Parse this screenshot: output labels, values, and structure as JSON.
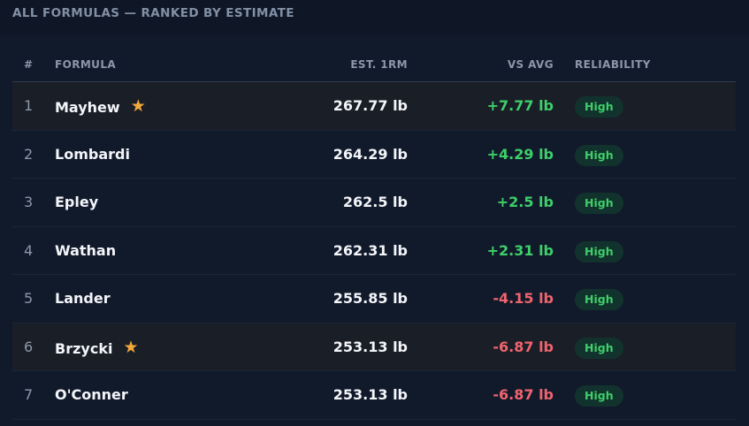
{
  "section_title": "ALL FORMULAS — RANKED BY ESTIMATE",
  "columns": {
    "rank": "#",
    "formula": "FORMULA",
    "est": "EST. 1RM",
    "vs": "VS AVG",
    "reliability": "RELIABILITY"
  },
  "colors": {
    "positive": "#3ecf6a",
    "negative": "#f0646d",
    "star": "#f2a93b",
    "badge_bg": "#12332d"
  },
  "rows": [
    {
      "rank": "1",
      "name": "Mayhew",
      "starred": true,
      "star_icon": "star-icon",
      "est": "267.77 lb",
      "vs": "+7.77 lb",
      "vs_sign": "pos",
      "reliability": "High",
      "highlight": true
    },
    {
      "rank": "2",
      "name": "Lombardi",
      "starred": false,
      "est": "264.29 lb",
      "vs": "+4.29 lb",
      "vs_sign": "pos",
      "reliability": "High",
      "highlight": false
    },
    {
      "rank": "3",
      "name": "Epley",
      "starred": false,
      "est": "262.5 lb",
      "vs": "+2.5 lb",
      "vs_sign": "pos",
      "reliability": "High",
      "highlight": false
    },
    {
      "rank": "4",
      "name": "Wathan",
      "starred": false,
      "est": "262.31 lb",
      "vs": "+2.31 lb",
      "vs_sign": "pos",
      "reliability": "High",
      "highlight": false
    },
    {
      "rank": "5",
      "name": "Lander",
      "starred": false,
      "est": "255.85 lb",
      "vs": "-4.15 lb",
      "vs_sign": "neg",
      "reliability": "High",
      "highlight": false
    },
    {
      "rank": "6",
      "name": "Brzycki",
      "starred": true,
      "star_icon": "star-icon",
      "est": "253.13 lb",
      "vs": "-6.87 lb",
      "vs_sign": "neg",
      "reliability": "High",
      "highlight": true
    },
    {
      "rank": "7",
      "name": "O'Conner",
      "starred": false,
      "est": "253.13 lb",
      "vs": "-6.87 lb",
      "vs_sign": "neg",
      "reliability": "High",
      "highlight": false
    }
  ]
}
